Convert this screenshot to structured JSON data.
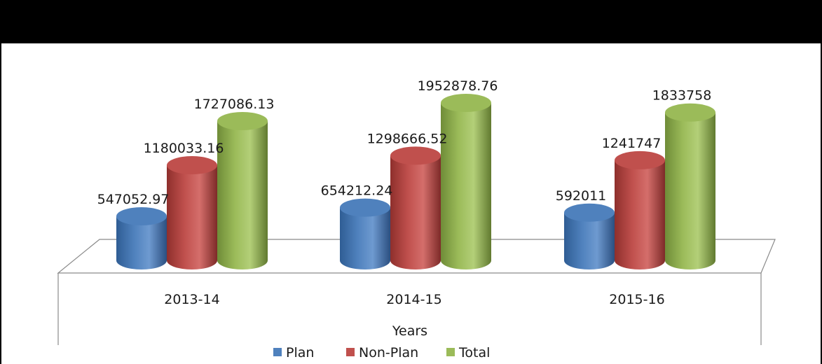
{
  "chart_data": {
    "type": "bar",
    "title": "",
    "xlabel": "Years",
    "ylabel": "",
    "categories": [
      "2013-14",
      "2014-15",
      "2015-16"
    ],
    "series": [
      {
        "name": "Plan",
        "color": "#4f81bd",
        "values": [
          547052.97,
          654212.24,
          592011
        ],
        "labels": [
          "547052.97",
          "654212.24",
          "592011"
        ]
      },
      {
        "name": "Non-Plan",
        "color": "#c0504d",
        "values": [
          1180033.16,
          1298666.52,
          1241747
        ],
        "labels": [
          "1180033.16",
          "1298666.52",
          "1241747"
        ]
      },
      {
        "name": "Total",
        "color": "#9bbb59",
        "values": [
          1727086.13,
          1952878.76,
          1833758
        ],
        "labels": [
          "1727086.13",
          "1952878.76",
          "1833758"
        ]
      }
    ],
    "style": "3d-cylinder",
    "grid": false,
    "legend": "bottom"
  }
}
